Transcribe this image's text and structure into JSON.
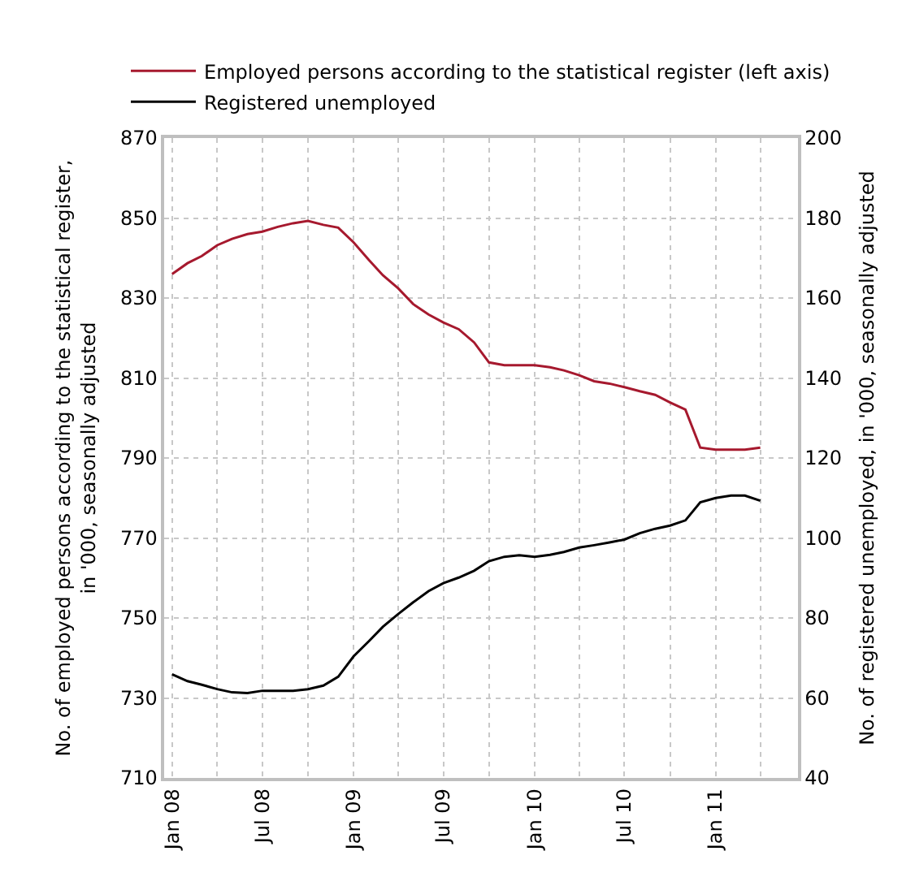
{
  "chart_data": {
    "type": "line",
    "ylabel": "No. of employed persons according to the statistical register,\nin '000, seasonally adjusted",
    "y2label": "No. of registered unemployed, in '000, seasonally adjusted",
    "x": [
      "2008-01",
      "2008-02",
      "2008-03",
      "2008-04",
      "2008-05",
      "2008-06",
      "2008-07",
      "2008-08",
      "2008-09",
      "2008-10",
      "2008-11",
      "2008-12",
      "2009-01",
      "2009-02",
      "2009-03",
      "2009-04",
      "2009-05",
      "2009-06",
      "2009-07",
      "2009-08",
      "2009-09",
      "2009-10",
      "2009-11",
      "2009-12",
      "2010-01",
      "2010-02",
      "2010-03",
      "2010-04",
      "2010-05",
      "2010-06",
      "2010-07",
      "2010-08",
      "2010-09",
      "2010-10",
      "2010-11",
      "2010-12",
      "2011-01",
      "2011-02",
      "2011-03",
      "2011-04"
    ],
    "series": [
      {
        "name": "Employed persons according to the statistical register (left axis)",
        "color": "#a6192e",
        "values": [
          836,
          838.7,
          840.5,
          843.2,
          844.8,
          846,
          846.6,
          847.8,
          848.7,
          849.3,
          848.3,
          847.6,
          843.9,
          839.5,
          835.7,
          832.4,
          828.5,
          825.9,
          823.9,
          822.2,
          818.9,
          813.9,
          813.2,
          813.2,
          813.2,
          812.7,
          811.9,
          810.7,
          809.2,
          808.6,
          807.7,
          806.7,
          805.8,
          803.9,
          802.1,
          792.6,
          792.1,
          792.1,
          792.1,
          792.6
        ]
      },
      {
        "name": "Registered unemployed",
        "color": "#000000",
        "axis": "y2",
        "values": [
          65.9,
          64.2,
          63.3,
          62.2,
          61.4,
          61.2,
          61.8,
          61.8,
          61.8,
          62.2,
          63.1,
          65.3,
          70.4,
          74.2,
          77.8,
          81,
          83.9,
          86.7,
          88.7,
          90.1,
          91.8,
          94.2,
          95.3,
          95.7,
          95.3,
          95.8,
          96.5,
          97.6,
          98.2,
          98.9,
          99.6,
          101.2,
          102.3,
          103.1,
          104.4,
          108.9,
          110,
          110.6,
          110.6,
          109.3
        ]
      }
    ],
    "xlim": [
      "2007-12-16",
      "2011-06-16"
    ],
    "xticks": [
      {
        "value": "2008-01",
        "label": "Jan 08"
      },
      {
        "value": "2008-04",
        "label": null
      },
      {
        "value": "2008-07",
        "label": "Jul 08"
      },
      {
        "value": "2008-10",
        "label": null
      },
      {
        "value": "2009-01",
        "label": "Jan 09"
      },
      {
        "value": "2009-04",
        "label": null
      },
      {
        "value": "2009-07",
        "label": "Jul 09"
      },
      {
        "value": "2009-10",
        "label": null
      },
      {
        "value": "2010-01",
        "label": "Jan 10"
      },
      {
        "value": "2010-04",
        "label": null
      },
      {
        "value": "2010-07",
        "label": "Jul 10"
      },
      {
        "value": "2010-10",
        "label": null
      },
      {
        "value": "2011-01",
        "label": "Jan 11"
      },
      {
        "value": "2011-04",
        "label": null
      }
    ],
    "ylim": [
      710,
      870
    ],
    "yticks": [
      710,
      730,
      750,
      770,
      790,
      810,
      830,
      850,
      870
    ],
    "y2lim": [
      40,
      200
    ],
    "y2ticks": [
      40,
      60,
      80,
      100,
      120,
      140,
      160,
      180,
      200
    ],
    "grid": true,
    "legend": "top",
    "marker": "none",
    "line_style": "solid"
  }
}
